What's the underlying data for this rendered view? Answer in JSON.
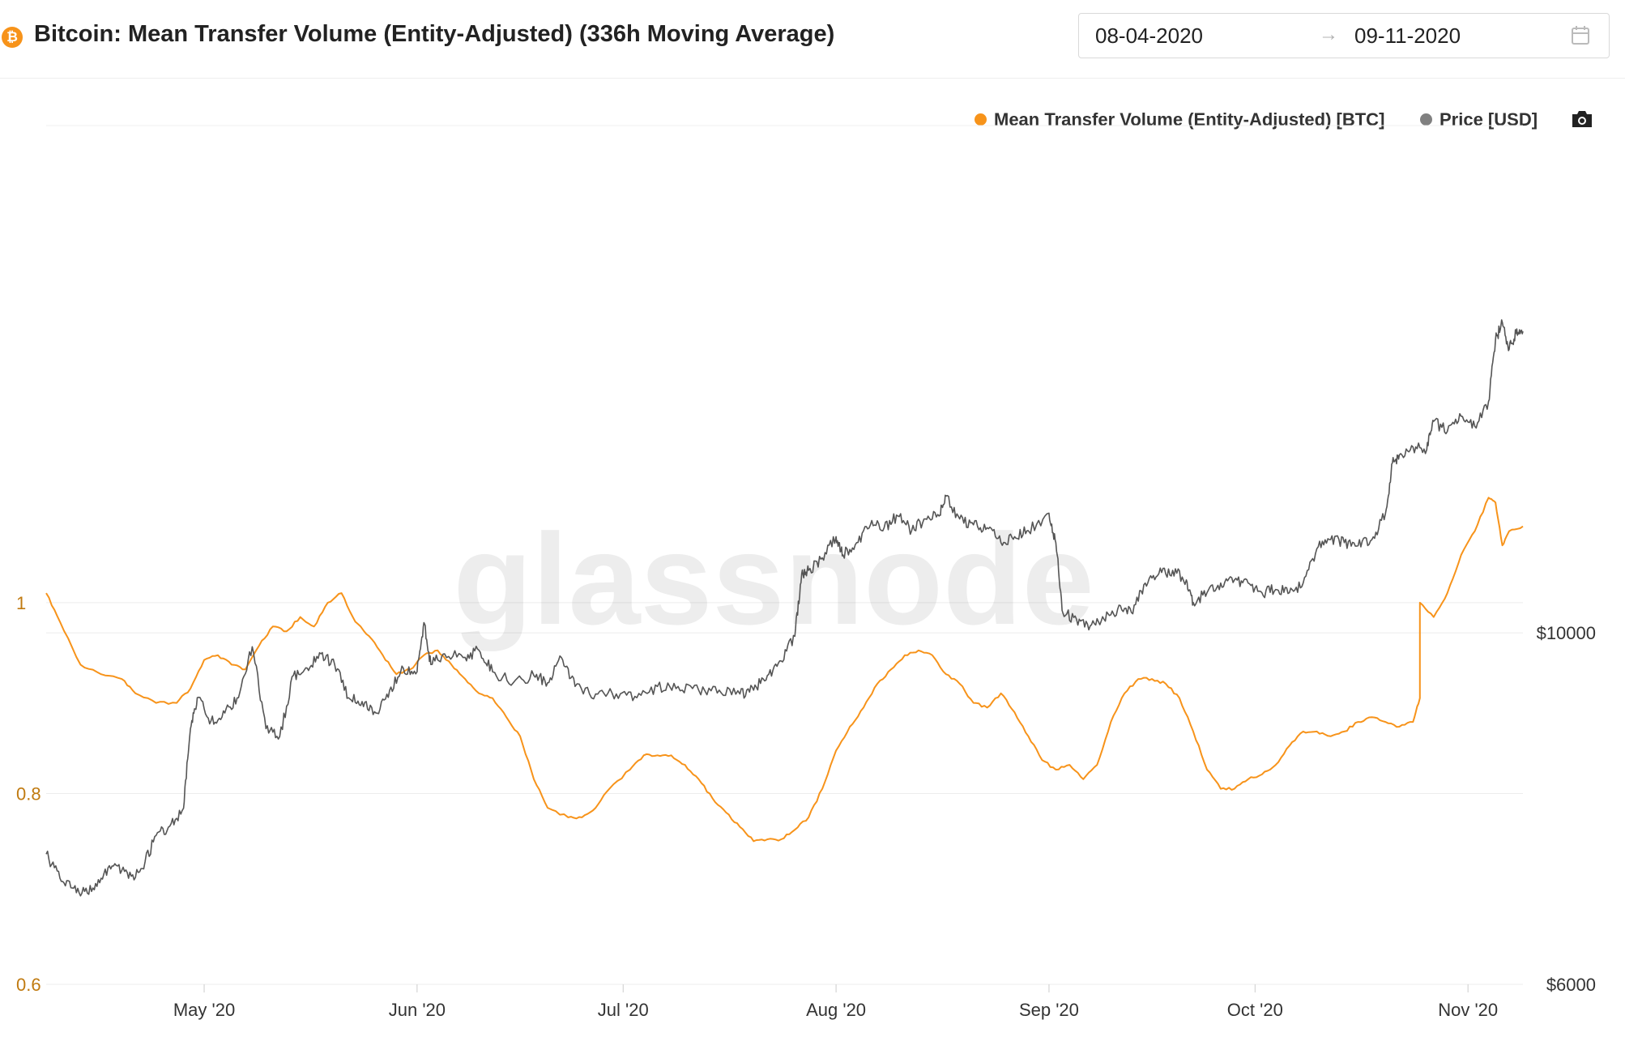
{
  "header": {
    "asset_icon": "bitcoin-icon",
    "asset_symbol": "₿",
    "title": "Bitcoin: Mean Transfer Volume (Entity-Adjusted) (336h Moving Average)",
    "date_from": "08-04-2020",
    "date_arrow": "→",
    "date_to": "09-11-2020",
    "calendar_icon": "calendar-icon"
  },
  "toolbar": {
    "camera_icon": "camera-icon"
  },
  "watermark": "glassnode",
  "chart_data": {
    "type": "line",
    "title": "Bitcoin: Mean Transfer Volume (Entity-Adjusted) (336h Moving Average)",
    "x_range": [
      "2020-04-08",
      "2020-11-09"
    ],
    "x_ticks": [
      {
        "date": "2020-05-01",
        "label": "May '20"
      },
      {
        "date": "2020-06-01",
        "label": "Jun '20"
      },
      {
        "date": "2020-07-01",
        "label": "Jul '20"
      },
      {
        "date": "2020-08-01",
        "label": "Aug '20"
      },
      {
        "date": "2020-09-01",
        "label": "Sep '20"
      },
      {
        "date": "2020-10-01",
        "label": "Oct '20"
      },
      {
        "date": "2020-11-01",
        "label": "Nov '20"
      }
    ],
    "y_left": {
      "scale": "linear",
      "range": [
        0.6,
        1.5
      ],
      "ticks": [
        0.6,
        0.8,
        1
      ],
      "tick_labels": [
        "0.6",
        "0.8",
        "1"
      ],
      "color": "#c07a10"
    },
    "y_right": {
      "scale": "log",
      "range": [
        6000,
        20900
      ],
      "ticks": [
        6000,
        10000
      ],
      "tick_labels": [
        "$6000",
        "$10000"
      ]
    },
    "grid": true,
    "legend_position": "top-right",
    "series": [
      {
        "name": "Mean Transfer Volume (Entity-Adjusted) [BTC]",
        "axis": "left",
        "color": "#f7931a",
        "points": [
          [
            "2020-04-08",
            1.01
          ],
          [
            "2020-04-10",
            0.98
          ],
          [
            "2020-04-13",
            0.935
          ],
          [
            "2020-04-16",
            0.925
          ],
          [
            "2020-04-19",
            0.92
          ],
          [
            "2020-04-21",
            0.905
          ],
          [
            "2020-04-24",
            0.895
          ],
          [
            "2020-04-27",
            0.895
          ],
          [
            "2020-04-29",
            0.91
          ],
          [
            "2020-05-01",
            0.94
          ],
          [
            "2020-05-03",
            0.945
          ],
          [
            "2020-05-05",
            0.935
          ],
          [
            "2020-05-07",
            0.93
          ],
          [
            "2020-05-09",
            0.955
          ],
          [
            "2020-05-11",
            0.975
          ],
          [
            "2020-05-13",
            0.97
          ],
          [
            "2020-05-15",
            0.985
          ],
          [
            "2020-05-17",
            0.975
          ],
          [
            "2020-05-19",
            1.0
          ],
          [
            "2020-05-21",
            1.01
          ],
          [
            "2020-05-23",
            0.98
          ],
          [
            "2020-05-25",
            0.965
          ],
          [
            "2020-05-27",
            0.945
          ],
          [
            "2020-05-29",
            0.925
          ],
          [
            "2020-05-31",
            0.93
          ],
          [
            "2020-06-02",
            0.945
          ],
          [
            "2020-06-04",
            0.95
          ],
          [
            "2020-06-06",
            0.935
          ],
          [
            "2020-06-08",
            0.92
          ],
          [
            "2020-06-10",
            0.905
          ],
          [
            "2020-06-12",
            0.9
          ],
          [
            "2020-06-14",
            0.88
          ],
          [
            "2020-06-16",
            0.86
          ],
          [
            "2020-06-18",
            0.815
          ],
          [
            "2020-06-20",
            0.785
          ],
          [
            "2020-06-23",
            0.775
          ],
          [
            "2020-06-25",
            0.775
          ],
          [
            "2020-06-27",
            0.785
          ],
          [
            "2020-06-29",
            0.805
          ],
          [
            "2020-07-02",
            0.825
          ],
          [
            "2020-07-04",
            0.84
          ],
          [
            "2020-07-06",
            0.84
          ],
          [
            "2020-07-08",
            0.84
          ],
          [
            "2020-07-10",
            0.83
          ],
          [
            "2020-07-12",
            0.815
          ],
          [
            "2020-07-14",
            0.795
          ],
          [
            "2020-07-16",
            0.78
          ],
          [
            "2020-07-18",
            0.765
          ],
          [
            "2020-07-20",
            0.75
          ],
          [
            "2020-07-22",
            0.752
          ],
          [
            "2020-07-24",
            0.752
          ],
          [
            "2020-07-26",
            0.762
          ],
          [
            "2020-07-28",
            0.775
          ],
          [
            "2020-07-30",
            0.805
          ],
          [
            "2020-08-01",
            0.845
          ],
          [
            "2020-08-03",
            0.87
          ],
          [
            "2020-08-05",
            0.89
          ],
          [
            "2020-08-07",
            0.915
          ],
          [
            "2020-08-09",
            0.93
          ],
          [
            "2020-08-11",
            0.945
          ],
          [
            "2020-08-13",
            0.95
          ],
          [
            "2020-08-15",
            0.945
          ],
          [
            "2020-08-17",
            0.925
          ],
          [
            "2020-08-19",
            0.915
          ],
          [
            "2020-08-21",
            0.895
          ],
          [
            "2020-08-23",
            0.89
          ],
          [
            "2020-08-25",
            0.905
          ],
          [
            "2020-08-27",
            0.885
          ],
          [
            "2020-08-29",
            0.86
          ],
          [
            "2020-08-31",
            0.835
          ],
          [
            "2020-09-02",
            0.825
          ],
          [
            "2020-09-04",
            0.83
          ],
          [
            "2020-09-06",
            0.815
          ],
          [
            "2020-09-08",
            0.83
          ],
          [
            "2020-09-10",
            0.875
          ],
          [
            "2020-09-12",
            0.905
          ],
          [
            "2020-09-14",
            0.92
          ],
          [
            "2020-09-16",
            0.92
          ],
          [
            "2020-09-18",
            0.915
          ],
          [
            "2020-09-20",
            0.9
          ],
          [
            "2020-09-22",
            0.865
          ],
          [
            "2020-09-24",
            0.825
          ],
          [
            "2020-09-26",
            0.805
          ],
          [
            "2020-09-28",
            0.805
          ],
          [
            "2020-09-30",
            0.815
          ],
          [
            "2020-10-02",
            0.82
          ],
          [
            "2020-10-04",
            0.83
          ],
          [
            "2020-10-06",
            0.85
          ],
          [
            "2020-10-08",
            0.865
          ],
          [
            "2020-10-10",
            0.865
          ],
          [
            "2020-10-12",
            0.86
          ],
          [
            "2020-10-14",
            0.865
          ],
          [
            "2020-10-16",
            0.875
          ],
          [
            "2020-10-18",
            0.88
          ],
          [
            "2020-10-20",
            0.875
          ],
          [
            "2020-10-22",
            0.87
          ],
          [
            "2020-10-24",
            0.875
          ],
          [
            "2020-10-25",
            0.9
          ],
          [
            "2020-10-25",
            1.0
          ],
          [
            "2020-10-27",
            0.985
          ],
          [
            "2020-10-29",
            1.01
          ],
          [
            "2020-10-31",
            1.05
          ],
          [
            "2020-11-02",
            1.075
          ],
          [
            "2020-11-04",
            1.11
          ],
          [
            "2020-11-05",
            1.105
          ],
          [
            "2020-11-06",
            1.06
          ],
          [
            "2020-11-07",
            1.075
          ],
          [
            "2020-11-09",
            1.08
          ]
        ]
      },
      {
        "name": "Price [USD]",
        "axis": "right",
        "color": "#555555",
        "points": [
          [
            "2020-04-08",
            7250
          ],
          [
            "2020-04-10",
            7000
          ],
          [
            "2020-04-12",
            6900
          ],
          [
            "2020-04-14",
            6850
          ],
          [
            "2020-04-16",
            7000
          ],
          [
            "2020-04-18",
            7150
          ],
          [
            "2020-04-20",
            7000
          ],
          [
            "2020-04-22",
            7100
          ],
          [
            "2020-04-24",
            7450
          ],
          [
            "2020-04-26",
            7550
          ],
          [
            "2020-04-28",
            7750
          ],
          [
            "2020-04-29",
            8700
          ],
          [
            "2020-04-30",
            9100
          ],
          [
            "2020-05-02",
            8800
          ],
          [
            "2020-05-04",
            8900
          ],
          [
            "2020-05-06",
            9100
          ],
          [
            "2020-05-08",
            9800
          ],
          [
            "2020-05-10",
            8700
          ],
          [
            "2020-05-12",
            8600
          ],
          [
            "2020-05-14",
            9400
          ],
          [
            "2020-05-16",
            9500
          ],
          [
            "2020-05-18",
            9700
          ],
          [
            "2020-05-20",
            9550
          ],
          [
            "2020-05-22",
            9100
          ],
          [
            "2020-05-24",
            9050
          ],
          [
            "2020-05-26",
            8900
          ],
          [
            "2020-05-28",
            9200
          ],
          [
            "2020-05-30",
            9500
          ],
          [
            "2020-06-01",
            9450
          ],
          [
            "2020-06-02",
            10150
          ],
          [
            "2020-06-03",
            9550
          ],
          [
            "2020-06-05",
            9700
          ],
          [
            "2020-06-08",
            9650
          ],
          [
            "2020-06-10",
            9750
          ],
          [
            "2020-06-12",
            9450
          ],
          [
            "2020-06-15",
            9300
          ],
          [
            "2020-06-18",
            9400
          ],
          [
            "2020-06-20",
            9300
          ],
          [
            "2020-06-22",
            9650
          ],
          [
            "2020-06-24",
            9250
          ],
          [
            "2020-06-27",
            9150
          ],
          [
            "2020-06-30",
            9150
          ],
          [
            "2020-07-03",
            9100
          ],
          [
            "2020-07-06",
            9250
          ],
          [
            "2020-07-09",
            9250
          ],
          [
            "2020-07-12",
            9200
          ],
          [
            "2020-07-15",
            9200
          ],
          [
            "2020-07-18",
            9150
          ],
          [
            "2020-07-20",
            9200
          ],
          [
            "2020-07-22",
            9400
          ],
          [
            "2020-07-24",
            9600
          ],
          [
            "2020-07-26",
            9950
          ],
          [
            "2020-07-27",
            10900
          ],
          [
            "2020-07-28",
            10950
          ],
          [
            "2020-07-30",
            11150
          ],
          [
            "2020-08-01",
            11500
          ],
          [
            "2020-08-02",
            11200
          ],
          [
            "2020-08-04",
            11400
          ],
          [
            "2020-08-06",
            11700
          ],
          [
            "2020-08-08",
            11650
          ],
          [
            "2020-08-10",
            11850
          ],
          [
            "2020-08-12",
            11600
          ],
          [
            "2020-08-14",
            11800
          ],
          [
            "2020-08-16",
            11850
          ],
          [
            "2020-08-17",
            12200
          ],
          [
            "2020-08-19",
            11800
          ],
          [
            "2020-08-21",
            11700
          ],
          [
            "2020-08-23",
            11650
          ],
          [
            "2020-08-25",
            11400
          ],
          [
            "2020-08-27",
            11500
          ],
          [
            "2020-08-29",
            11600
          ],
          [
            "2020-09-01",
            11900
          ],
          [
            "2020-09-02",
            11400
          ],
          [
            "2020-09-03",
            10300
          ],
          [
            "2020-09-05",
            10200
          ],
          [
            "2020-09-07",
            10100
          ],
          [
            "2020-09-09",
            10200
          ],
          [
            "2020-09-11",
            10350
          ],
          [
            "2020-09-13",
            10300
          ],
          [
            "2020-09-15",
            10750
          ],
          [
            "2020-09-17",
            10900
          ],
          [
            "2020-09-19",
            10950
          ],
          [
            "2020-09-21",
            10800
          ],
          [
            "2020-09-22",
            10450
          ],
          [
            "2020-09-24",
            10600
          ],
          [
            "2020-09-26",
            10750
          ],
          [
            "2020-09-28",
            10800
          ],
          [
            "2020-09-30",
            10750
          ],
          [
            "2020-10-02",
            10600
          ],
          [
            "2020-10-04",
            10650
          ],
          [
            "2020-10-06",
            10600
          ],
          [
            "2020-10-08",
            10750
          ],
          [
            "2020-10-10",
            11300
          ],
          [
            "2020-10-12",
            11450
          ],
          [
            "2020-10-14",
            11400
          ],
          [
            "2020-10-16",
            11350
          ],
          [
            "2020-10-18",
            11450
          ],
          [
            "2020-10-20",
            11900
          ],
          [
            "2020-10-21",
            12800
          ],
          [
            "2020-10-22",
            12950
          ],
          [
            "2020-10-24",
            13100
          ],
          [
            "2020-10-26",
            13050
          ],
          [
            "2020-10-27",
            13600
          ],
          [
            "2020-10-29",
            13400
          ],
          [
            "2020-10-31",
            13700
          ],
          [
            "2020-11-02",
            13500
          ],
          [
            "2020-11-04",
            14000
          ],
          [
            "2020-11-05",
            15300
          ],
          [
            "2020-11-06",
            15700
          ],
          [
            "2020-11-07",
            15100
          ],
          [
            "2020-11-08",
            15450
          ],
          [
            "2020-11-09",
            15500
          ]
        ]
      }
    ]
  }
}
